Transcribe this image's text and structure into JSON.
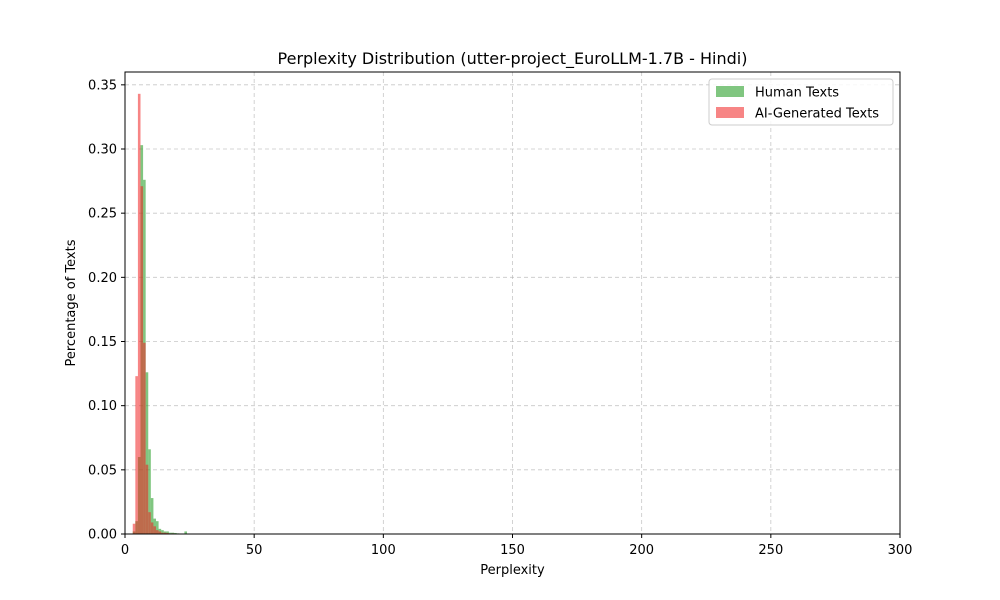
{
  "chart_data": {
    "type": "bar",
    "title": "Perplexity Distribution (utter-project_EuroLLM-1.7B - Hindi)",
    "xlabel": "Perplexity",
    "ylabel": "Percentage of Texts",
    "xlim": [
      0,
      300
    ],
    "ylim": [
      0,
      0.36
    ],
    "x_ticks": [
      0,
      50,
      100,
      150,
      200,
      250,
      300
    ],
    "y_ticks": [
      0.0,
      0.05,
      0.1,
      0.15,
      0.2,
      0.25,
      0.3,
      0.35
    ],
    "x_tick_labels": [
      "0",
      "50",
      "100",
      "150",
      "200",
      "250",
      "300"
    ],
    "y_tick_labels": [
      "0.00",
      "0.05",
      "0.10",
      "0.15",
      "0.20",
      "0.25",
      "0.30",
      "0.35"
    ],
    "grid": true,
    "legend_position": "top-right",
    "bin_width": 1.0,
    "series": [
      {
        "name": "Human Texts",
        "color": "#2ca02c",
        "opacity": 0.6,
        "bins": [
          [
            3,
            0.002
          ],
          [
            4,
            0.01
          ],
          [
            5,
            0.06
          ],
          [
            6,
            0.303
          ],
          [
            7,
            0.276
          ],
          [
            8,
            0.126
          ],
          [
            9,
            0.066
          ],
          [
            10,
            0.028
          ],
          [
            11,
            0.012
          ],
          [
            12,
            0.01
          ],
          [
            13,
            0.004
          ],
          [
            14,
            0.003
          ],
          [
            15,
            0.002
          ],
          [
            16,
            0.002
          ],
          [
            17,
            0.001
          ],
          [
            18,
            0.001
          ],
          [
            19,
            0.0008
          ],
          [
            20,
            0.0005
          ],
          [
            23,
            0.002
          ]
        ]
      },
      {
        "name": "AI-Generated Texts",
        "color": "#f02020",
        "opacity": 0.55,
        "bins": [
          [
            3,
            0.008
          ],
          [
            4,
            0.123
          ],
          [
            5,
            0.343
          ],
          [
            6,
            0.271
          ],
          [
            7,
            0.149
          ],
          [
            8,
            0.054
          ],
          [
            9,
            0.017
          ],
          [
            10,
            0.009
          ],
          [
            11,
            0.006
          ],
          [
            12,
            0.003
          ],
          [
            13,
            0.002
          ],
          [
            14,
            0.001
          ],
          [
            15,
            0.001
          ],
          [
            16,
            0.0008
          ],
          [
            18,
            0.0005
          ],
          [
            19,
            0.0003
          ]
        ]
      }
    ]
  }
}
